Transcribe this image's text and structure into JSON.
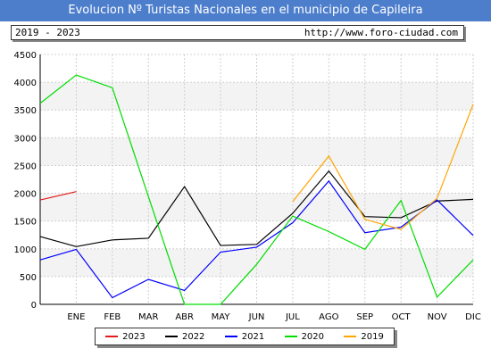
{
  "title": "Evolucion Nº Turistas Nacionales en el municipio de Capileira",
  "period": "2019 - 2023",
  "url": "http://www.foro-ciudad.com",
  "chart_data": {
    "type": "line",
    "categories": [
      "ENE",
      "FEB",
      "MAR",
      "ABR",
      "MAY",
      "JUN",
      "JUL",
      "AGO",
      "SEP",
      "OCT",
      "NOV",
      "DIC"
    ],
    "x_start_value": 1880,
    "ylim": [
      0,
      4500
    ],
    "yticks": [
      "0",
      "500",
      "1000",
      "1500",
      "2000",
      "2500",
      "3000",
      "3500",
      "4000",
      "4500"
    ],
    "grid": true,
    "series": [
      {
        "name": "2023",
        "color": "#e41a1c",
        "values": [
          2030,
          null,
          null,
          null,
          null,
          null,
          null,
          null,
          null,
          null,
          null,
          null
        ],
        "start": 1880
      },
      {
        "name": "2022",
        "color": "#000000",
        "values": [
          1040,
          1160,
          1190,
          2120,
          1060,
          1080,
          1640,
          2400,
          1580,
          1560,
          1860,
          1890
        ],
        "start": 1220
      },
      {
        "name": "2021",
        "color": "#0000ff",
        "values": [
          990,
          120,
          450,
          250,
          940,
          1030,
          1470,
          2220,
          1290,
          1390,
          1880,
          1240
        ],
        "start": 800
      },
      {
        "name": "2020",
        "color": "#00dd00",
        "values": [
          4130,
          3900,
          1940,
          0,
          0,
          720,
          1590,
          1310,
          990,
          1870,
          130,
          800
        ],
        "start": 3620
      },
      {
        "name": "2019",
        "color": "#ffa500",
        "values": [
          null,
          null,
          null,
          null,
          null,
          null,
          1850,
          2670,
          1530,
          1350,
          1910,
          3600
        ],
        "start": null
      }
    ]
  }
}
